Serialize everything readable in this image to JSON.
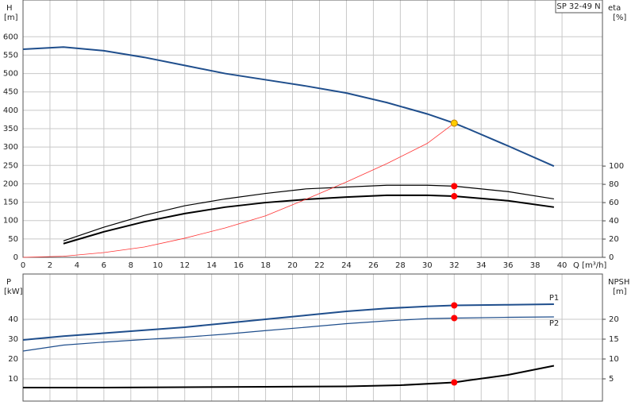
{
  "chart_data": [
    {
      "type": "line",
      "y_label": "H",
      "y_unit": "[m]",
      "y2_label": "eta",
      "y2_unit": "[%]",
      "x_label": "Q [m³/h]",
      "annotation": "SP 32-49 N",
      "xlim": [
        0,
        43
      ],
      "xticks": [
        0,
        2,
        4,
        6,
        8,
        10,
        12,
        14,
        16,
        18,
        20,
        22,
        24,
        26,
        28,
        30,
        32,
        34,
        36,
        38,
        40
      ],
      "ylim": [
        0,
        700
      ],
      "yticks": [
        0,
        50,
        100,
        150,
        200,
        250,
        300,
        350,
        400,
        450,
        500,
        550,
        600
      ],
      "y2lim": [
        0,
        282
      ],
      "y2ticks": [
        0,
        20,
        40,
        60,
        80,
        100
      ],
      "grid": true,
      "series": [
        {
          "color": "#1f4e8c",
          "width": 2,
          "axis": "y",
          "x": [
            0,
            3,
            6,
            9,
            12,
            15,
            18,
            21,
            24,
            27,
            30,
            32,
            33,
            36,
            39.4
          ],
          "values": [
            566,
            572,
            562,
            544,
            522,
            500,
            483,
            466,
            447,
            421,
            390,
            365,
            350,
            303,
            248
          ]
        },
        {
          "color": "#000000",
          "width": 1.2,
          "axis": "y2",
          "x": [
            3,
            6,
            9,
            12,
            15,
            18,
            21,
            24,
            27,
            30,
            32,
            36,
            39.4
          ],
          "values": [
            18,
            33,
            46,
            56.5,
            64,
            70,
            75,
            77,
            79,
            79,
            78,
            72,
            64
          ]
        },
        {
          "color": "#000000",
          "width": 2,
          "axis": "y2",
          "x": [
            3,
            6,
            9,
            12,
            15,
            18,
            21,
            24,
            27,
            30,
            32,
            36,
            39.4
          ],
          "values": [
            15,
            28,
            39,
            48,
            55,
            60,
            63.5,
            66,
            68,
            68,
            67,
            62,
            55
          ]
        },
        {
          "color": "#ff3333",
          "width": 0.8,
          "axis": "y",
          "x": [
            0,
            3,
            6,
            9,
            12,
            15,
            18,
            21,
            24,
            27,
            30,
            32
          ],
          "values": [
            0,
            3,
            13,
            28,
            52,
            80,
            113,
            158,
            205,
            255,
            310,
            365
          ]
        }
      ],
      "points": [
        {
          "x": 32,
          "y": 365,
          "axis": "y",
          "color": "#ffcc00"
        },
        {
          "x": 32,
          "y": 78,
          "axis": "y2",
          "color": "#ff0000"
        },
        {
          "x": 32,
          "y": 67,
          "axis": "y2",
          "color": "#ff0000"
        }
      ]
    },
    {
      "type": "line",
      "y_label": "P",
      "y_unit": "[kW]",
      "y2_label": "NPSH",
      "y2_unit": "[m]",
      "xlim": [
        0,
        43
      ],
      "xticks": [
        0,
        2,
        4,
        6,
        8,
        10,
        12,
        14,
        16,
        18,
        20,
        22,
        24,
        26,
        28,
        30,
        32,
        34,
        36,
        38,
        40
      ],
      "ylim": [
        -1.2,
        62.8
      ],
      "yticks": [
        10,
        20,
        30,
        40
      ],
      "y2lim": [
        -0.6,
        31.4
      ],
      "y2ticks": [
        5,
        10,
        15,
        20
      ],
      "grid": true,
      "series": [
        {
          "name": "P1",
          "color": "#1f4e8c",
          "width": 2,
          "axis": "y",
          "x": [
            0,
            3,
            6,
            9,
            12,
            15,
            18,
            21,
            24,
            27,
            30,
            32,
            36,
            39.4
          ],
          "values": [
            29.6,
            31.5,
            33,
            34.5,
            36,
            38,
            40,
            42,
            44,
            45.5,
            46.5,
            47,
            47.3,
            47.6
          ]
        },
        {
          "name": "P2",
          "color": "#1f4e8c",
          "width": 1.2,
          "axis": "y",
          "x": [
            0,
            3,
            6,
            9,
            12,
            15,
            18,
            21,
            24,
            27,
            30,
            32,
            36,
            39.4
          ],
          "values": [
            24,
            27,
            28.5,
            29.8,
            31,
            32.5,
            34.3,
            36,
            37.8,
            39.2,
            40.3,
            40.6,
            41,
            41.2
          ]
        },
        {
          "color": "#000000",
          "width": 2,
          "axis": "y2",
          "x": [
            0,
            3,
            6,
            12,
            18,
            24,
            28,
            32,
            33,
            36,
            39.4
          ],
          "values": [
            2.8,
            2.8,
            2.8,
            2.9,
            3.0,
            3.1,
            3.4,
            4.1,
            4.6,
            6,
            8.3
          ]
        }
      ],
      "points": [
        {
          "x": 32,
          "y": 47,
          "axis": "y",
          "color": "#ff0000"
        },
        {
          "x": 32,
          "y": 40.6,
          "axis": "y",
          "color": "#ff0000"
        },
        {
          "x": 32,
          "y": 4.1,
          "axis": "y2",
          "color": "#ff0000"
        }
      ]
    }
  ]
}
